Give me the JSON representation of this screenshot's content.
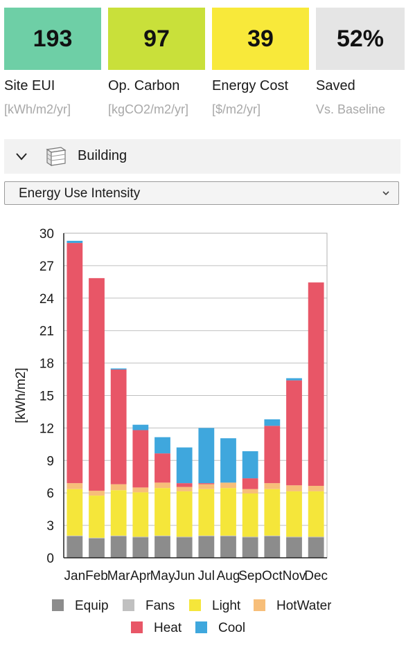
{
  "metrics": [
    {
      "value": "193",
      "label": "Site EUI",
      "unit": "[kWh/m2/yr]",
      "color": "#6ecfa6"
    },
    {
      "value": "97",
      "label": "Op. Carbon",
      "unit": "[kgCO2/m2/yr]",
      "color": "#c9e03a"
    },
    {
      "value": "39",
      "label": "Energy Cost",
      "unit": "[$/m2/yr]",
      "color": "#f8e93a"
    },
    {
      "value": "52%",
      "label": "Saved",
      "unit": "Vs. Baseline",
      "color": "#e5e5e5"
    }
  ],
  "building": {
    "label": "Building",
    "icon": "building-icon",
    "toggle_icon": "chevron-down-icon"
  },
  "metric_select": {
    "selected": "Energy Use Intensity"
  },
  "chart_data": {
    "type": "bar",
    "stacked": true,
    "title": "",
    "xlabel": "",
    "ylabel": "[kWh/m2]",
    "ylim": [
      0,
      30
    ],
    "yticks": [
      0,
      3,
      6,
      9,
      12,
      15,
      18,
      21,
      24,
      27,
      30
    ],
    "grid": true,
    "legend_position": "bottom",
    "categories": [
      "Jan",
      "Feb",
      "Mar",
      "Apr",
      "May",
      "Jun",
      "Jul",
      "Aug",
      "Sep",
      "Oct",
      "Nov",
      "Dec"
    ],
    "series": [
      {
        "name": "Equip",
        "color": "#8c8c8c",
        "values": [
          2.0,
          1.8,
          2.0,
          1.9,
          2.0,
          1.9,
          2.0,
          2.0,
          1.9,
          2.0,
          1.9,
          1.9
        ]
      },
      {
        "name": "Fans",
        "color": "#c0c0c0",
        "values": [
          0.05,
          0.05,
          0.05,
          0.05,
          0.05,
          0.05,
          0.05,
          0.05,
          0.05,
          0.05,
          0.05,
          0.05
        ]
      },
      {
        "name": "Light",
        "color": "#f5e63a",
        "values": [
          4.3,
          3.9,
          4.2,
          4.1,
          4.4,
          4.2,
          4.3,
          4.4,
          4.0,
          4.3,
          4.2,
          4.2
        ]
      },
      {
        "name": "HotWater",
        "color": "#f7be79",
        "values": [
          0.55,
          0.45,
          0.55,
          0.45,
          0.5,
          0.4,
          0.45,
          0.5,
          0.4,
          0.55,
          0.55,
          0.5
        ]
      },
      {
        "name": "Heat",
        "color": "#e85667",
        "values": [
          22.2,
          19.65,
          10.6,
          5.3,
          2.7,
          0.35,
          0.1,
          0.0,
          1.0,
          5.3,
          9.7,
          18.8
        ]
      },
      {
        "name": "Cool",
        "color": "#3fa7dd",
        "values": [
          0.2,
          0.0,
          0.1,
          0.5,
          1.5,
          3.3,
          5.1,
          4.1,
          2.5,
          0.6,
          0.2,
          0.0
        ]
      }
    ]
  }
}
